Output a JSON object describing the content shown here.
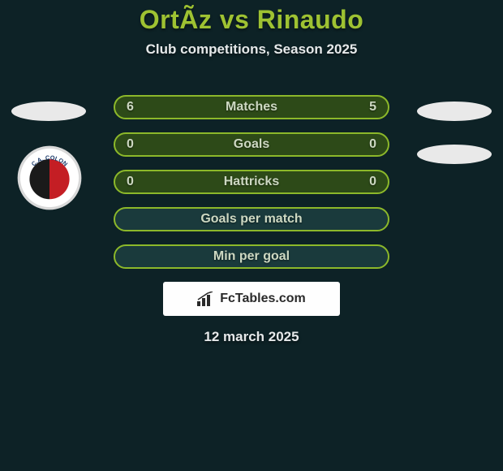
{
  "colors": {
    "bg": "#0d2226",
    "title": "#9ec232",
    "subtitle": "#e6e9ea",
    "row_border": "#8cb82a",
    "row_fill": "#2d4a18",
    "row_fill_empty": "#1a3a3c",
    "row_text": "#cdd8c2",
    "pill_fill": "#e9e9e9",
    "footer_bg": "#fefefe",
    "footer_text": "#2a2a2a",
    "date_text": "#e6e9ea",
    "badge_outer": "#d9d9d9",
    "badge_black": "#1a1a1a",
    "badge_red": "#c41e24",
    "badge_text": "#1a3a6a"
  },
  "title": "OrtÃ­z vs Rinaudo",
  "subtitle": "Club competitions, Season 2025",
  "rows": [
    {
      "label": "Matches",
      "left": "6",
      "right": "5",
      "filled": true
    },
    {
      "label": "Goals",
      "left": "0",
      "right": "0",
      "filled": true
    },
    {
      "label": "Hattricks",
      "left": "0",
      "right": "0",
      "filled": true
    },
    {
      "label": "Goals per match",
      "left": "",
      "right": "",
      "filled": false
    },
    {
      "label": "Min per goal",
      "left": "",
      "right": "",
      "filled": false
    }
  ],
  "footer_brand": "FcTables.com",
  "date": "12 march 2025",
  "badge_label": "C.A. COLON"
}
